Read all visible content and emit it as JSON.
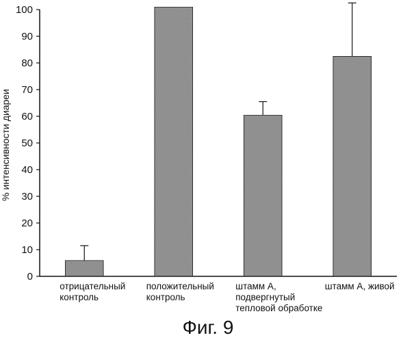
{
  "chart_data": {
    "type": "bar",
    "title": "",
    "xlabel": "",
    "ylabel": "% интенсивности диареи",
    "ylim": [
      0,
      100
    ],
    "yticks": [
      0,
      10,
      20,
      30,
      40,
      50,
      60,
      70,
      80,
      90,
      100
    ],
    "grid": false,
    "categories": [
      [
        "отрицательный",
        "контроль"
      ],
      [
        "положительный",
        "контроль"
      ],
      [
        "штамм А,",
        "подвергнутый",
        "тепловой обработке"
      ],
      [
        "штамм А, живой"
      ]
    ],
    "values": [
      6,
      101,
      60.5,
      82.5
    ],
    "error_upper": [
      5.5,
      0,
      5,
      20
    ],
    "bar_fill": "#9a9a9a",
    "bar_stroke": "#222222"
  },
  "caption": "Фиг. 9"
}
